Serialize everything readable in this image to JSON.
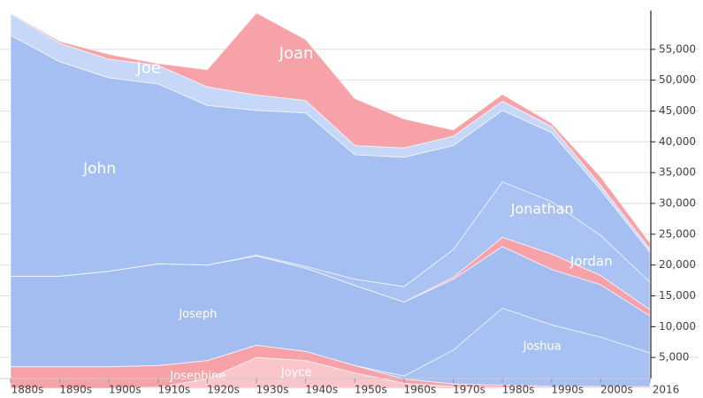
{
  "chart_data": {
    "type": "stacked_area",
    "categories": [
      "1880s",
      "1890s",
      "1900s",
      "1910s",
      "1920s",
      "1930s",
      "1940s",
      "1950s",
      "1960s",
      "1970s",
      "1980s",
      "1990s",
      "2000s",
      "2016"
    ],
    "ylim": [
      0,
      61000
    ],
    "yticks": [
      {
        "value": 5000,
        "label": "5,000"
      },
      {
        "value": 10000,
        "label": "10,000"
      },
      {
        "value": 15000,
        "label": "15,000"
      },
      {
        "value": 20000,
        "label": "20,000"
      },
      {
        "value": 25000,
        "label": "25,000"
      },
      {
        "value": 30000,
        "label": "30,000"
      },
      {
        "value": 35000,
        "label": "35,000"
      },
      {
        "value": 40000,
        "label": "40,000"
      },
      {
        "value": 45000,
        "label": "45,000"
      },
      {
        "value": 50000,
        "label": "50,000"
      },
      {
        "value": 55000,
        "label": "55,000"
      }
    ],
    "grid": true,
    "series": [
      {
        "name": "Joyce",
        "color": "#fbc6ca",
        "values": [
          0,
          0,
          0,
          200,
          1500,
          5000,
          4500,
          2500,
          800,
          300,
          200,
          100,
          100,
          50
        ]
      },
      {
        "name": "Josephine",
        "color": "#f6a2a8",
        "values": [
          3500,
          3500,
          3500,
          3500,
          3000,
          2000,
          1500,
          1200,
          700,
          400,
          300,
          200,
          200,
          200
        ]
      },
      {
        "name": "Joshua",
        "color": "#a8c1f3",
        "values": [
          0,
          0,
          0,
          0,
          0,
          0,
          0,
          0,
          500,
          5500,
          12500,
          10000,
          8000,
          5500
        ]
      },
      {
        "name": "Joseph",
        "color": "#a3bdf1",
        "values": [
          14700,
          14700,
          15500,
          16500,
          15500,
          14500,
          13500,
          13000,
          12000,
          11500,
          10000,
          9000,
          8500,
          6000
        ]
      },
      {
        "name": "Jordan",
        "color": "#f6a2a8",
        "values": [
          0,
          0,
          0,
          0,
          0,
          0,
          0,
          0,
          0,
          300,
          1500,
          2500,
          1500,
          1000
        ]
      },
      {
        "name": "Jonathan",
        "color": "#aac3f3",
        "values": [
          0,
          0,
          0,
          0,
          0,
          100,
          300,
          1000,
          2500,
          4500,
          9000,
          8500,
          6500,
          4500
        ]
      },
      {
        "name": "John",
        "color": "#a5bff2",
        "values": [
          39100,
          34800,
          31400,
          29200,
          25900,
          23500,
          24900,
          20200,
          21000,
          16900,
          11600,
          11200,
          7400,
          4850
        ]
      },
      {
        "name": "Joe",
        "color": "#c7d7f7",
        "values": [
          3500,
          3000,
          3000,
          3000,
          3000,
          2500,
          2000,
          1500,
          1500,
          1500,
          1500,
          1000,
          700,
          500
        ]
      },
      {
        "name": "Joan",
        "color": "#f6a2a8",
        "values": [
          100,
          300,
          800,
          300,
          2800,
          13300,
          9900,
          7600,
          4700,
          1000,
          1100,
          500,
          1400,
          1000
        ]
      }
    ]
  }
}
